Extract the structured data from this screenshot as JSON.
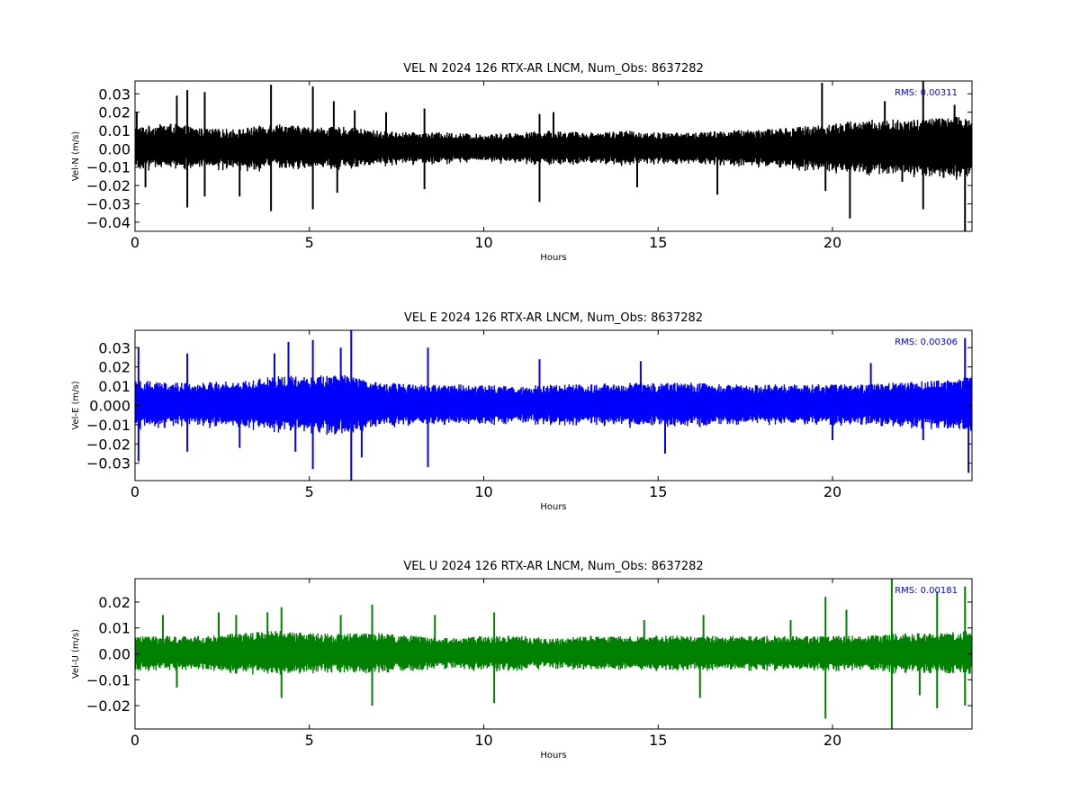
{
  "chart_data": [
    {
      "type": "line",
      "title": "VEL N 2024 126 RTX-AR  LNCM, Num_Obs: 8637282",
      "xlabel": "Hours",
      "ylabel": "Vel-N (m/s)",
      "xlim": [
        0,
        24
      ],
      "ylim": [
        -0.045,
        0.037
      ],
      "xticks": [
        0,
        5,
        10,
        15,
        20
      ],
      "xtick_labels": [
        "0",
        "5",
        "10",
        "15",
        "20"
      ],
      "yticks": [
        0.03,
        0.02,
        0.01,
        0.0,
        -0.01,
        -0.02,
        -0.03,
        -0.04
      ],
      "ytick_labels": [
        "0.03",
        "0.02",
        "0.01",
        "0.00",
        "−0.01",
        "−0.02",
        "−0.03",
        "−0.04"
      ],
      "color": "#000000",
      "annotation": "RMS:  0.00311",
      "annotation_color": "#0000ff",
      "series": [
        {
          "x": [
            0,
            1,
            2,
            3,
            4,
            5,
            6,
            7,
            8,
            9,
            10,
            11,
            12,
            13,
            14,
            15,
            16,
            17,
            18,
            19,
            20,
            21,
            22,
            23,
            24
          ],
          "y": [
            0.0,
            0.001,
            0.0,
            -0.001,
            0.001,
            0.0,
            0.0,
            0.0,
            0.0,
            0.0,
            0.0,
            0.0,
            0.0,
            0.0,
            0.0,
            0.0,
            0.0,
            0.0,
            0.0,
            0.0,
            0.0,
            0.0,
            0.0,
            0.0,
            0.0
          ],
          "band": [
            0.012,
            0.013,
            0.011,
            0.012,
            0.013,
            0.012,
            0.012,
            0.01,
            0.009,
            0.009,
            0.008,
            0.009,
            0.01,
            0.009,
            0.01,
            0.009,
            0.009,
            0.01,
            0.011,
            0.012,
            0.014,
            0.016,
            0.016,
            0.017,
            0.018
          ],
          "spikes": [
            [
              0.05,
              0.02
            ],
            [
              0.3,
              -0.021
            ],
            [
              1.2,
              0.029
            ],
            [
              1.5,
              0.032
            ],
            [
              1.5,
              -0.032
            ],
            [
              2.0,
              0.031
            ],
            [
              2.0,
              -0.026
            ],
            [
              3.0,
              -0.026
            ],
            [
              3.9,
              0.035
            ],
            [
              3.9,
              -0.034
            ],
            [
              5.1,
              0.034
            ],
            [
              5.1,
              -0.033
            ],
            [
              5.7,
              0.026
            ],
            [
              5.8,
              -0.024
            ],
            [
              6.3,
              0.021
            ],
            [
              7.2,
              0.02
            ],
            [
              8.3,
              0.022
            ],
            [
              8.3,
              -0.022
            ],
            [
              11.6,
              0.019
            ],
            [
              11.6,
              -0.029
            ],
            [
              12.0,
              0.02
            ],
            [
              14.4,
              -0.021
            ],
            [
              16.7,
              -0.025
            ],
            [
              19.7,
              0.036
            ],
            [
              19.8,
              -0.023
            ],
            [
              20.5,
              -0.038
            ],
            [
              21.5,
              0.026
            ],
            [
              22.0,
              -0.018
            ],
            [
              22.6,
              0.037
            ],
            [
              22.6,
              -0.033
            ],
            [
              23.5,
              0.024
            ],
            [
              23.8,
              -0.045
            ]
          ]
        }
      ]
    },
    {
      "type": "line",
      "title": "VEL E 2024 126 RTX-AR  LNCM, Num_Obs: 8637282",
      "xlabel": "Hours",
      "ylabel": "Vel-E (m/s)",
      "xlim": [
        0,
        24
      ],
      "ylim": [
        -0.039,
        0.039
      ],
      "xticks": [
        0,
        5,
        10,
        15,
        20
      ],
      "xtick_labels": [
        "0",
        "5",
        "10",
        "15",
        "20"
      ],
      "yticks": [
        0.03,
        0.02,
        0.01,
        0.0,
        -0.01,
        -0.02,
        -0.03
      ],
      "ytick_labels": [
        "0.03",
        "0.02",
        "0.01",
        "0.000",
        "−0.01",
        "−0.02",
        "−0.03"
      ],
      "color": "#0000ff",
      "annotation": "RMS:  0.00306",
      "annotation_color": "#0000ff",
      "series": [
        {
          "x": [
            0,
            1,
            2,
            3,
            4,
            5,
            6,
            7,
            8,
            9,
            10,
            11,
            12,
            13,
            14,
            15,
            16,
            17,
            18,
            19,
            20,
            21,
            22,
            23,
            24
          ],
          "y": [
            0.0,
            0.0,
            0.0,
            0.0,
            0.0,
            0.0,
            0.0,
            0.0,
            0.0,
            0.0,
            0.0,
            0.0,
            0.0,
            0.0,
            0.0,
            0.0,
            0.0,
            0.0,
            0.0,
            0.0,
            0.0,
            0.0,
            0.0,
            0.0,
            0.0
          ],
          "band": [
            0.014,
            0.012,
            0.012,
            0.013,
            0.015,
            0.016,
            0.016,
            0.012,
            0.011,
            0.011,
            0.011,
            0.01,
            0.011,
            0.011,
            0.012,
            0.012,
            0.012,
            0.011,
            0.011,
            0.011,
            0.011,
            0.011,
            0.012,
            0.013,
            0.015
          ],
          "spikes": [
            [
              0.1,
              0.03
            ],
            [
              0.1,
              -0.029
            ],
            [
              1.5,
              0.027
            ],
            [
              1.5,
              -0.024
            ],
            [
              3.0,
              -0.022
            ],
            [
              4.0,
              0.027
            ],
            [
              4.4,
              0.033
            ],
            [
              4.6,
              -0.024
            ],
            [
              5.1,
              0.034
            ],
            [
              5.1,
              -0.033
            ],
            [
              5.9,
              0.03
            ],
            [
              6.2,
              0.039
            ],
            [
              6.2,
              -0.039
            ],
            [
              6.5,
              -0.027
            ],
            [
              8.4,
              0.03
            ],
            [
              8.4,
              -0.032
            ],
            [
              11.6,
              0.024
            ],
            [
              14.5,
              0.023
            ],
            [
              15.2,
              -0.025
            ],
            [
              20.0,
              -0.018
            ],
            [
              21.1,
              0.022
            ],
            [
              22.6,
              -0.018
            ],
            [
              23.8,
              0.035
            ],
            [
              23.9,
              -0.035
            ]
          ]
        }
      ]
    },
    {
      "type": "line",
      "title": "VEL U 2024 126 RTX-AR  LNCM, Num_Obs: 8637282",
      "xlabel": "Hours",
      "ylabel": "Vel-U (m/s)",
      "xlim": [
        0,
        24
      ],
      "ylim": [
        -0.029,
        0.029
      ],
      "xticks": [
        0,
        5,
        10,
        15,
        20
      ],
      "xtick_labels": [
        "0",
        "5",
        "10",
        "15",
        "20"
      ],
      "yticks": [
        0.02,
        0.01,
        0.0,
        -0.01,
        -0.02
      ],
      "ytick_labels": [
        "0.02",
        "0.01",
        "0.00",
        "−0.01",
        "−0.02"
      ],
      "color": "#008000",
      "annotation": "RMS:  0.00181",
      "annotation_color": "#0000ff",
      "series": [
        {
          "x": [
            0,
            1,
            2,
            3,
            4,
            5,
            6,
            7,
            8,
            9,
            10,
            11,
            12,
            13,
            14,
            15,
            16,
            17,
            18,
            19,
            20,
            21,
            22,
            23,
            24
          ],
          "y": [
            0.0,
            0.0,
            0.0,
            0.0,
            0.0,
            0.0,
            0.0,
            0.0,
            0.0,
            0.0,
            0.0,
            0.0,
            0.0,
            0.0,
            0.0,
            0.0,
            0.0,
            0.0,
            0.0,
            0.0,
            0.0,
            0.0,
            0.0,
            0.0,
            0.0
          ],
          "band": [
            0.007,
            0.007,
            0.007,
            0.008,
            0.009,
            0.008,
            0.008,
            0.008,
            0.007,
            0.006,
            0.007,
            0.007,
            0.006,
            0.007,
            0.007,
            0.007,
            0.007,
            0.007,
            0.007,
            0.007,
            0.007,
            0.007,
            0.008,
            0.008,
            0.009
          ],
          "spikes": [
            [
              0.8,
              0.015
            ],
            [
              1.2,
              -0.013
            ],
            [
              2.4,
              0.016
            ],
            [
              2.9,
              0.015
            ],
            [
              3.8,
              0.016
            ],
            [
              4.2,
              0.018
            ],
            [
              4.2,
              -0.017
            ],
            [
              5.9,
              0.015
            ],
            [
              6.8,
              0.019
            ],
            [
              6.8,
              -0.02
            ],
            [
              8.6,
              0.015
            ],
            [
              10.3,
              0.016
            ],
            [
              10.3,
              -0.019
            ],
            [
              14.6,
              0.013
            ],
            [
              16.2,
              -0.017
            ],
            [
              16.3,
              0.015
            ],
            [
              18.8,
              0.013
            ],
            [
              19.8,
              0.022
            ],
            [
              19.8,
              -0.025
            ],
            [
              20.4,
              0.017
            ],
            [
              21.7,
              0.029
            ],
            [
              21.7,
              -0.029
            ],
            [
              22.5,
              -0.016
            ],
            [
              23.0,
              0.024
            ],
            [
              23.0,
              -0.021
            ],
            [
              23.8,
              0.026
            ],
            [
              23.8,
              -0.02
            ]
          ]
        }
      ]
    }
  ]
}
